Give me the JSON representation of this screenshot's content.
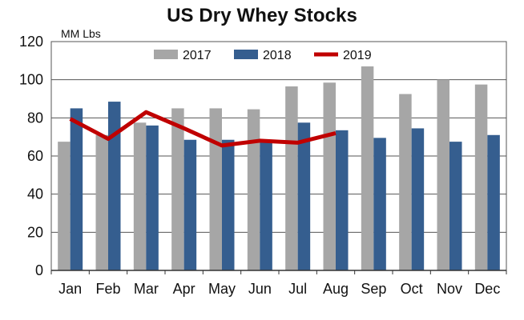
{
  "chart_data": {
    "type": "bar",
    "title": "US Dry Whey Stocks",
    "ylabel": "MM Lbs",
    "xlabel": "",
    "ylim": [
      0,
      120
    ],
    "yticks": [
      0,
      20,
      40,
      60,
      80,
      100,
      120
    ],
    "grid": "horizontal",
    "legend_position": "top-center",
    "categories": [
      "Jan",
      "Feb",
      "Mar",
      "Apr",
      "May",
      "Jun",
      "Jul",
      "Aug",
      "Sep",
      "Oct",
      "Nov",
      "Dec"
    ],
    "series": [
      {
        "name": "2017",
        "type": "bar",
        "color": "#a6a6a6",
        "values": [
          67.5,
          71,
          77.5,
          85,
          85,
          84.5,
          96.5,
          98.5,
          107,
          92.5,
          100,
          97.5
        ]
      },
      {
        "name": "2018",
        "type": "bar",
        "color": "#355e8f",
        "values": [
          85,
          88.5,
          76,
          68.5,
          68.5,
          68,
          77.5,
          73.5,
          69.5,
          74.5,
          67.5,
          71
        ]
      },
      {
        "name": "2019",
        "type": "line",
        "color": "#c00000",
        "values": [
          79.5,
          69,
          83,
          74.5,
          65.5,
          68,
          67,
          72,
          null,
          null,
          null,
          null
        ]
      }
    ]
  }
}
